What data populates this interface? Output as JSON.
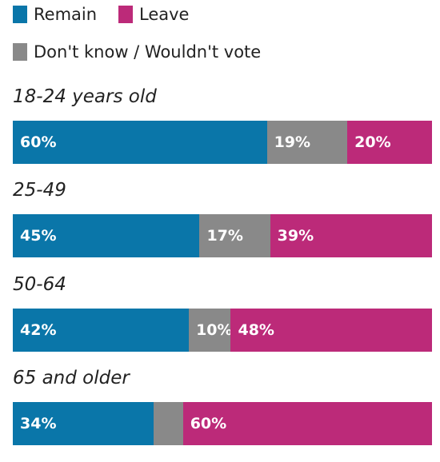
{
  "chart_data": {
    "type": "bar",
    "orientation": "horizontal-stacked",
    "legend": [
      {
        "key": "remain",
        "label": "Remain",
        "color": "#0a76a9"
      },
      {
        "key": "leave",
        "label": "Leave",
        "color": "#bc2a79"
      },
      {
        "key": "dk",
        "label": "Don't know / Wouldn't vote",
        "color": "#898989"
      }
    ],
    "categories": [
      "18-24 years old",
      "25-49",
      "50-64",
      "65 and older"
    ],
    "series": [
      {
        "name": "Remain",
        "key": "remain",
        "values": [
          60,
          45,
          42,
          34
        ],
        "labels": [
          "60%",
          "45%",
          "42%",
          "34%"
        ]
      },
      {
        "name": "Don't know / Wouldn't vote",
        "key": "dk",
        "values": [
          19,
          17,
          10,
          7
        ],
        "labels": [
          "19%",
          "17%",
          "10%",
          ""
        ]
      },
      {
        "name": "Leave",
        "key": "leave",
        "values": [
          20,
          39,
          48,
          60
        ],
        "labels": [
          "20%",
          "39%",
          "48%",
          "60%"
        ]
      }
    ],
    "legend_placement": "top-left",
    "grid": false
  }
}
